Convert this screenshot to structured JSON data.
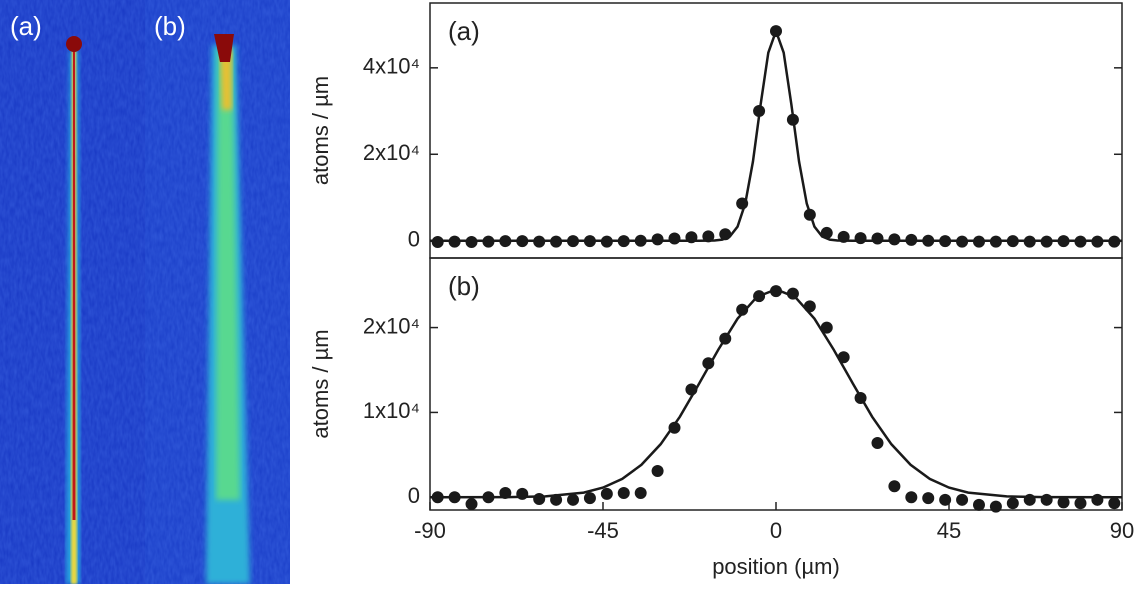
{
  "images": {
    "labels": [
      "(a)",
      "(b)"
    ]
  },
  "chart_data": [
    {
      "type": "scatter",
      "annotation": "(a)",
      "ylabel": "atoms / µm",
      "xlim": [
        -90,
        90
      ],
      "ylim": [
        -4000,
        55000
      ],
      "yticks": [
        0,
        {
          "value": 20000,
          "label": "2x10⁴"
        },
        {
          "value": 40000,
          "label": "4x10⁴"
        }
      ],
      "series": [
        {
          "type": "scatter",
          "color": "#1a1a1a",
          "x": [
            -88,
            -83.6,
            -79.2,
            -74.8,
            -70.4,
            -66,
            -61.6,
            -57.2,
            -52.8,
            -48.4,
            -44,
            -39.6,
            -35.2,
            -30.8,
            -26.4,
            -22,
            -17.6,
            -13.2,
            -8.8,
            -4.4,
            0,
            4.4,
            8.8,
            13.2,
            17.6,
            22,
            26.4,
            30.8,
            35.2,
            39.6,
            44,
            48.4,
            52.8,
            57.2,
            61.6,
            66,
            70.4,
            74.8,
            79.2,
            83.6,
            88
          ],
          "values": [
            -300,
            -200,
            -300,
            -200,
            -100,
            -100,
            -200,
            -200,
            -100,
            -100,
            -200,
            -100,
            0,
            300,
            500,
            800,
            1000,
            1500,
            8600,
            30000,
            48500,
            28000,
            6000,
            1800,
            900,
            600,
            500,
            300,
            200,
            0,
            -100,
            -200,
            -200,
            -200,
            -100,
            -200,
            -200,
            -100,
            -200,
            -200,
            -200
          ]
        },
        {
          "type": "line",
          "color": "#1a1a1a",
          "x": [
            -90,
            -30,
            -20,
            -16,
            -14,
            -12,
            -10,
            -8,
            -6,
            -4,
            -2,
            0,
            2,
            4,
            6,
            8,
            10,
            12,
            14,
            16,
            20,
            30,
            90
          ],
          "values": [
            0,
            0,
            0,
            48,
            243,
            990,
            3250,
            8600,
            18300,
            31500,
            43500,
            48500,
            43500,
            31500,
            18300,
            8600,
            3250,
            990,
            243,
            48,
            0,
            0,
            0
          ]
        }
      ]
    },
    {
      "type": "scatter",
      "annotation": "(b)",
      "ylabel": "atoms / µm",
      "xlabel": "position (µm)",
      "xlim": [
        -90,
        90
      ],
      "ylim": [
        -1500,
        28200
      ],
      "xticks": [
        -90,
        -45,
        0,
        45,
        90
      ],
      "yticks": [
        0,
        {
          "value": 10000,
          "label": "1x10⁴"
        },
        {
          "value": 20000,
          "label": "2x10⁴"
        }
      ],
      "series": [
        {
          "type": "scatter",
          "color": "#1a1a1a",
          "x": [
            -88,
            -83.6,
            -79.2,
            -74.8,
            -70.4,
            -66,
            -61.6,
            -57.2,
            -52.8,
            -48.4,
            -44,
            -39.6,
            -35.2,
            -30.8,
            -26.4,
            -22,
            -17.6,
            -13.2,
            -8.8,
            -4.4,
            0,
            4.4,
            8.8,
            13.2,
            17.6,
            22,
            26.4,
            30.8,
            35.2,
            39.6,
            44,
            48.4,
            52.8,
            57.2,
            61.6,
            66,
            70.4,
            74.8,
            79.2,
            83.6,
            88
          ],
          "values": [
            0,
            0,
            -800,
            0,
            500,
            400,
            -200,
            -300,
            -300,
            -100,
            400,
            500,
            500,
            3100,
            8200,
            12700,
            15800,
            18700,
            22100,
            23700,
            24300,
            24000,
            22500,
            20000,
            16500,
            11700,
            6400,
            1300,
            0,
            -100,
            -300,
            -300,
            -900,
            -1100,
            -700,
            -300,
            -300,
            -600,
            -700,
            -300,
            -700
          ]
        },
        {
          "type": "line",
          "color": "#1a1a1a",
          "x": [
            -90,
            -70,
            -60,
            -50,
            -45,
            -40,
            -35,
            -30,
            -25,
            -20,
            -15,
            -10,
            -5,
            0,
            5,
            10,
            15,
            20,
            25,
            30,
            35,
            40,
            45,
            50,
            60,
            70,
            90
          ],
          "values": [
            0,
            15,
            105,
            550,
            1140,
            2170,
            3830,
            6260,
            9500,
            13400,
            17400,
            21050,
            23600,
            24500,
            23600,
            21050,
            17400,
            13400,
            9500,
            6260,
            3830,
            2170,
            1140,
            550,
            105,
            15,
            0
          ]
        }
      ]
    }
  ]
}
